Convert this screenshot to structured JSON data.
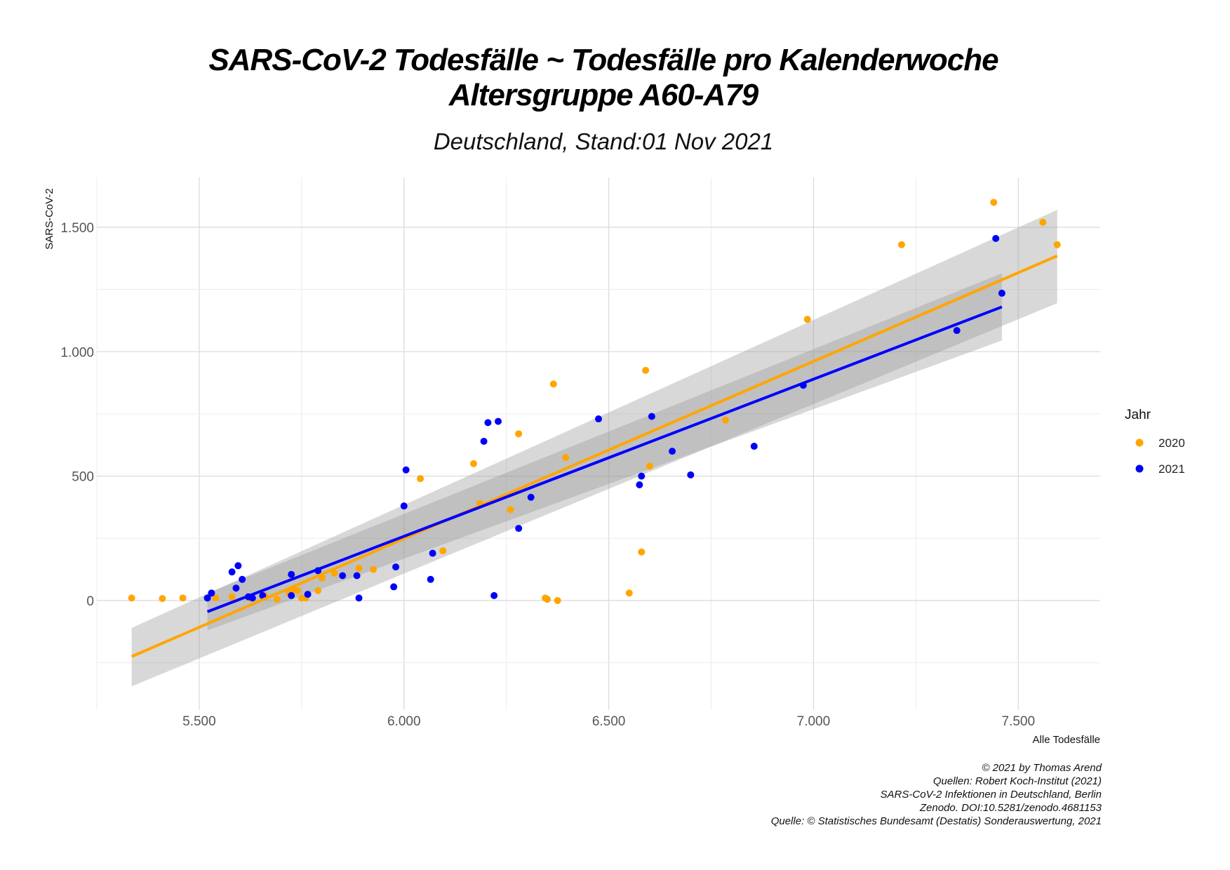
{
  "chart_data": {
    "type": "scatter",
    "title": "SARS-CoV-2 Todesfälle ~ Todesfälle pro Kalenderwoche",
    "title_line2": "Altersgruppe A60-A79",
    "subtitle": "Deutschland, Stand:01 Nov 2021",
    "xlabel": "Alle Todesfälle",
    "ylabel": "SARS-CoV-2",
    "xlim": [
      5250,
      7700
    ],
    "ylim": [
      -440,
      1700
    ],
    "x_ticks": [
      5500,
      6000,
      6500,
      7000,
      7500
    ],
    "x_tick_labels": [
      "5.500",
      "6.000",
      "6.500",
      "7.000",
      "7.500"
    ],
    "y_ticks": [
      0,
      500,
      1000,
      1500
    ],
    "y_tick_labels": [
      "0",
      "500",
      "1.000",
      "1.500"
    ],
    "grid": true,
    "legend_title": "Jahr",
    "legend_position": "right",
    "colors": {
      "2020": "#FFA500",
      "2021": "#0000FF",
      "band": "#999999"
    },
    "series": [
      {
        "name": "2020",
        "color": "#FFA500",
        "points": [
          [
            5335,
            10
          ],
          [
            5410,
            8
          ],
          [
            5460,
            10
          ],
          [
            5540,
            10
          ],
          [
            5580,
            15
          ],
          [
            5625,
            10
          ],
          [
            5660,
            20
          ],
          [
            5690,
            5
          ],
          [
            5720,
            30
          ],
          [
            5730,
            45
          ],
          [
            5740,
            40
          ],
          [
            5750,
            10
          ],
          [
            5760,
            10
          ],
          [
            5790,
            40
          ],
          [
            5800,
            90
          ],
          [
            5830,
            110
          ],
          [
            5890,
            130
          ],
          [
            5925,
            125
          ],
          [
            6040,
            490
          ],
          [
            6095,
            200
          ],
          [
            6170,
            550
          ],
          [
            6185,
            390
          ],
          [
            6260,
            365
          ],
          [
            6280,
            670
          ],
          [
            6345,
            10
          ],
          [
            6350,
            5
          ],
          [
            6365,
            870
          ],
          [
            6375,
            0
          ],
          [
            6395,
            575
          ],
          [
            6550,
            30
          ],
          [
            6580,
            195
          ],
          [
            6590,
            925
          ],
          [
            6600,
            540
          ],
          [
            6785,
            725
          ],
          [
            6985,
            1130
          ],
          [
            7215,
            1430
          ],
          [
            7440,
            1600
          ],
          [
            7560,
            1520
          ],
          [
            7595,
            1430
          ]
        ],
        "fit": {
          "x_start": 5335,
          "x_end": 7595,
          "y_start": -225,
          "y_end": 1385,
          "band_start": [
            -345,
            -110
          ],
          "band_end": [
            1195,
            1570
          ]
        }
      },
      {
        "name": "2021",
        "color": "#0000FF",
        "points": [
          [
            5520,
            10
          ],
          [
            5530,
            30
          ],
          [
            5580,
            115
          ],
          [
            5590,
            50
          ],
          [
            5595,
            140
          ],
          [
            5605,
            85
          ],
          [
            5620,
            15
          ],
          [
            5630,
            10
          ],
          [
            5655,
            20
          ],
          [
            5725,
            105
          ],
          [
            5725,
            20
          ],
          [
            5765,
            25
          ],
          [
            5790,
            120
          ],
          [
            5850,
            100
          ],
          [
            5885,
            100
          ],
          [
            5890,
            10
          ],
          [
            5975,
            55
          ],
          [
            5980,
            135
          ],
          [
            6000,
            380
          ],
          [
            6005,
            525
          ],
          [
            6065,
            85
          ],
          [
            6070,
            190
          ],
          [
            6195,
            640
          ],
          [
            6205,
            715
          ],
          [
            6220,
            20
          ],
          [
            6230,
            720
          ],
          [
            6280,
            290
          ],
          [
            6310,
            415
          ],
          [
            6475,
            730
          ],
          [
            6575,
            465
          ],
          [
            6580,
            500
          ],
          [
            6605,
            740
          ],
          [
            6655,
            600
          ],
          [
            6700,
            505
          ],
          [
            6855,
            620
          ],
          [
            6975,
            865
          ],
          [
            7350,
            1085
          ],
          [
            7445,
            1455
          ],
          [
            7460,
            1235
          ]
        ],
        "fit": {
          "x_start": 5520,
          "x_end": 7460,
          "y_start": -45,
          "y_end": 1180,
          "band_start": [
            -120,
            30
          ],
          "band_end": [
            1045,
            1315
          ]
        }
      }
    ],
    "caption_lines": [
      "© 2021 by Thomas Arend",
      "Quellen: Robert Koch-Institut (2021)",
      "SARS-CoV-2 Infektionen in Deutschland, Berlin",
      "Zenodo. DOI:10.5281/zenodo.4681153",
      "Quelle: © Statistisches Bundesamt (Destatis) Sonderauswertung, 2021"
    ]
  }
}
